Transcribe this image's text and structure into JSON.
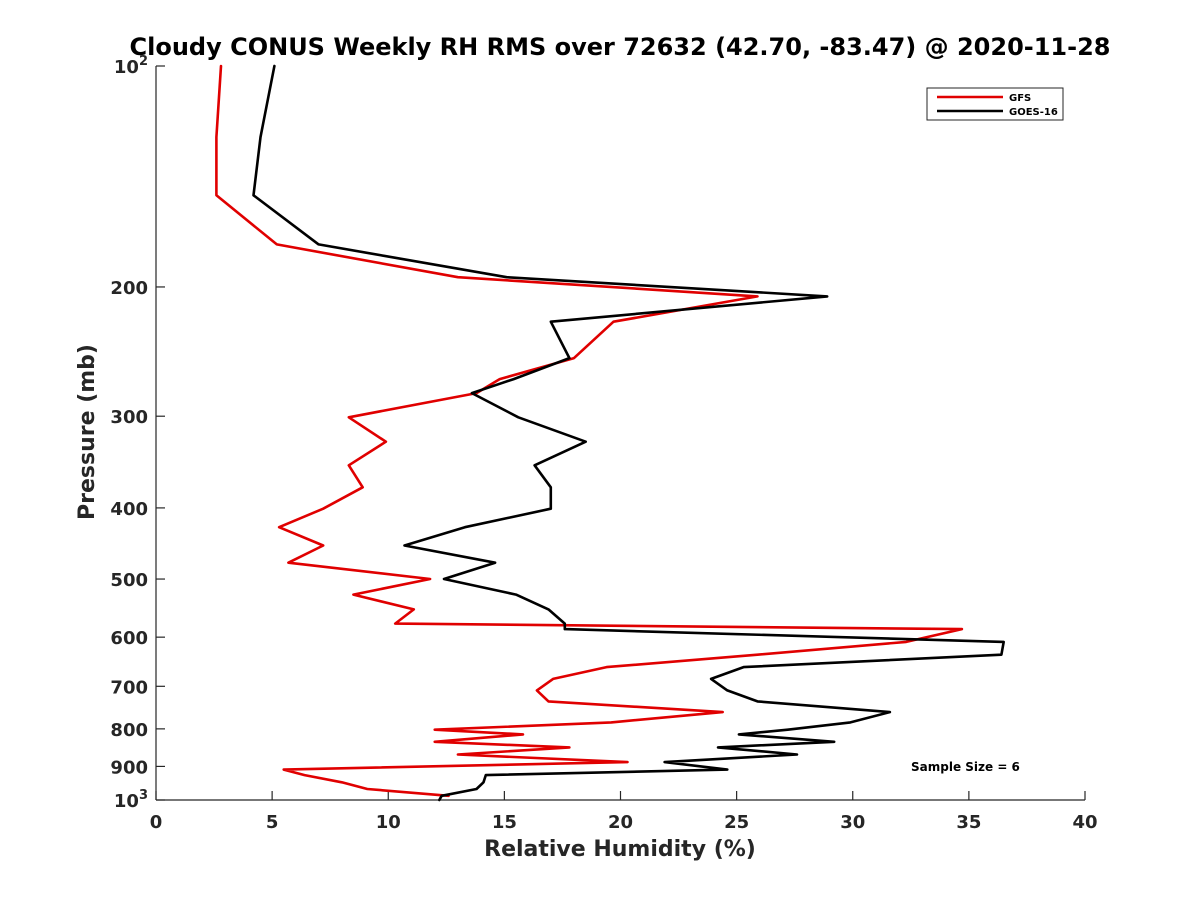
{
  "chart_data": {
    "type": "line",
    "title": "Cloudy CONUS Weekly RH RMS over 72632 (42.70, -83.47) @ 2020-11-28",
    "xlabel": "Relative Humidity (%)",
    "ylabel": "Pressure (mb)",
    "xlim": [
      0,
      40
    ],
    "ylim": [
      100,
      1000
    ],
    "y_scale": "log",
    "y_reversed": true,
    "grid": false,
    "legend_position": "top-right",
    "x_ticks": [
      0,
      5,
      10,
      15,
      20,
      25,
      30,
      35,
      40
    ],
    "y_ticks": [
      {
        "value": 100,
        "base": "10",
        "exp": "2"
      },
      {
        "value": 200,
        "label": "200"
      },
      {
        "value": 300,
        "label": "300"
      },
      {
        "value": 400,
        "label": "400"
      },
      {
        "value": 500,
        "label": "500"
      },
      {
        "value": 600,
        "label": "600"
      },
      {
        "value": 700,
        "label": "700"
      },
      {
        "value": 800,
        "label": "800"
      },
      {
        "value": 900,
        "label": "900"
      },
      {
        "value": 1000,
        "base": "10",
        "exp": "3"
      }
    ],
    "annotation": "Sample Size = 6",
    "series": [
      {
        "name": "GFS",
        "color": "#e00000",
        "points": [
          [
            2.8,
            100
          ],
          [
            2.6,
            125
          ],
          [
            2.6,
            150
          ],
          [
            5.2,
            175
          ],
          [
            13,
            194
          ],
          [
            25.9,
            206
          ],
          [
            19.7,
            223
          ],
          [
            18,
            250
          ],
          [
            14.8,
            267
          ],
          [
            13.8,
            279
          ],
          [
            8.3,
            301
          ],
          [
            9.9,
            325
          ],
          [
            8.3,
            350
          ],
          [
            8.9,
            375
          ],
          [
            7.2,
            401
          ],
          [
            5.3,
            425
          ],
          [
            7.2,
            450
          ],
          [
            5.7,
            475
          ],
          [
            11.8,
            500
          ],
          [
            8.5,
            525
          ],
          [
            11.1,
            550
          ],
          [
            10.3,
            575
          ],
          [
            34.7,
            585
          ],
          [
            32.3,
            609
          ],
          [
            25.9,
            634
          ],
          [
            19.4,
            659
          ],
          [
            17.1,
            684
          ],
          [
            16.4,
            709
          ],
          [
            16.9,
            734
          ],
          [
            24.4,
            759
          ],
          [
            19.6,
            784
          ],
          [
            12,
            802
          ],
          [
            15.8,
            814
          ],
          [
            12,
            833
          ],
          [
            17.8,
            848
          ],
          [
            13,
            867
          ],
          [
            20.3,
            888
          ],
          [
            5.5,
            909
          ],
          [
            6.4,
            925
          ],
          [
            8,
            946
          ],
          [
            9.1,
            966
          ],
          [
            12.6,
            987
          ]
        ]
      },
      {
        "name": "GOES-16",
        "color": "#000000",
        "points": [
          [
            5.1,
            100
          ],
          [
            4.5,
            125
          ],
          [
            4.2,
            150
          ],
          [
            7,
            175
          ],
          [
            15.1,
            194
          ],
          [
            28.9,
            206
          ],
          [
            17,
            223
          ],
          [
            17.8,
            250
          ],
          [
            15.4,
            267
          ],
          [
            13.6,
            279
          ],
          [
            15.6,
            301
          ],
          [
            18.5,
            325
          ],
          [
            16.3,
            350
          ],
          [
            17,
            375
          ],
          [
            17,
            401
          ],
          [
            13.3,
            425
          ],
          [
            10.7,
            450
          ],
          [
            14.6,
            475
          ],
          [
            12.4,
            500
          ],
          [
            15.5,
            525
          ],
          [
            16.9,
            550
          ],
          [
            17.6,
            575
          ],
          [
            17.6,
            585
          ],
          [
            36.5,
            609
          ],
          [
            36.4,
            634
          ],
          [
            25.3,
            659
          ],
          [
            23.9,
            684
          ],
          [
            24.6,
            709
          ],
          [
            25.9,
            734
          ],
          [
            31.6,
            759
          ],
          [
            29.9,
            784
          ],
          [
            27.2,
            802
          ],
          [
            25.1,
            814
          ],
          [
            29.2,
            833
          ],
          [
            24.2,
            848
          ],
          [
            27.6,
            867
          ],
          [
            21.9,
            888
          ],
          [
            24.6,
            909
          ],
          [
            14.2,
            925
          ],
          [
            14.1,
            946
          ],
          [
            13.8,
            966
          ],
          [
            12.3,
            987
          ],
          [
            12.2,
            1000
          ]
        ]
      }
    ]
  }
}
